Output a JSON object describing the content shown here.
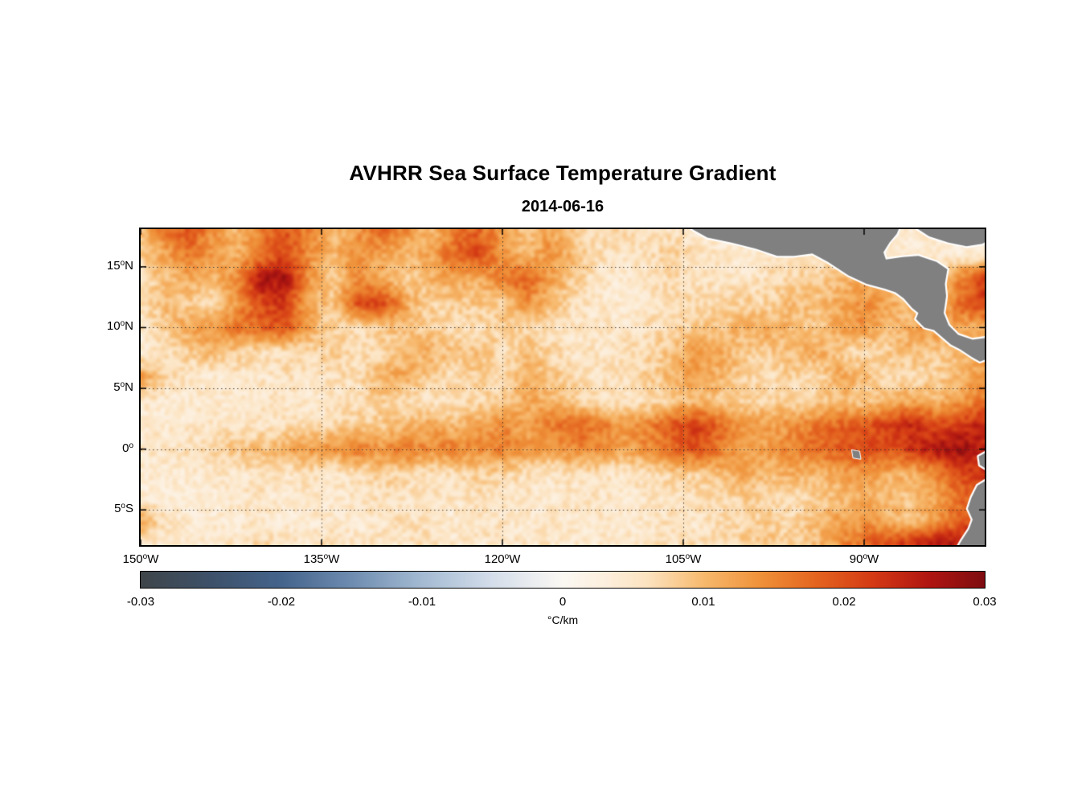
{
  "chart_data": {
    "type": "heatmap",
    "title": "AVHRR Sea Surface Temperature Gradient",
    "subtitle": "2014-06-16",
    "background_noise_amplitude": 0.0025,
    "axes": {
      "lon_west_range": [
        150,
        80
      ],
      "lat_range": [
        18.1,
        -7.9
      ],
      "grid_style": "dotted",
      "x_ticks": [
        {
          "lon": 150,
          "base": "150",
          "sup": "o",
          "suffix": "W"
        },
        {
          "lon": 135,
          "base": "135",
          "sup": "o",
          "suffix": "W"
        },
        {
          "lon": 120,
          "base": "120",
          "sup": "o",
          "suffix": "W"
        },
        {
          "lon": 105,
          "base": "105",
          "sup": "o",
          "suffix": "W"
        },
        {
          "lon": 90,
          "base": "90",
          "sup": "o",
          "suffix": "W"
        }
      ],
      "y_ticks": [
        {
          "lat": 15,
          "base": "15",
          "sup": "o",
          "suffix": "N"
        },
        {
          "lat": 10,
          "base": "10",
          "sup": "o",
          "suffix": "N"
        },
        {
          "lat": 5,
          "base": "5",
          "sup": "o",
          "suffix": "N"
        },
        {
          "lat": 0,
          "base": "0",
          "sup": "o",
          "suffix": ""
        },
        {
          "lat": -5,
          "base": "5",
          "sup": "o",
          "suffix": "S"
        }
      ]
    },
    "colorbar": {
      "label": "°C/km",
      "min": -0.03,
      "max": 0.03,
      "ticks": [
        {
          "value": -0.03,
          "label": "-0.03"
        },
        {
          "value": -0.02,
          "label": "-0.02"
        },
        {
          "value": -0.01,
          "label": "-0.01"
        },
        {
          "value": 0,
          "label": "0"
        },
        {
          "value": 0.01,
          "label": "0.01"
        },
        {
          "value": 0.02,
          "label": "0.02"
        },
        {
          "value": 0.03,
          "label": "0.03"
        }
      ],
      "stops": [
        [
          -0.03,
          "#3f4549"
        ],
        [
          -0.025,
          "#3d5169"
        ],
        [
          -0.02,
          "#45648c"
        ],
        [
          -0.015,
          "#6e8cb0"
        ],
        [
          -0.01,
          "#a3bad2"
        ],
        [
          -0.005,
          "#d4ddea"
        ],
        [
          0,
          "#fbf8f3"
        ],
        [
          0.003,
          "#fcefdd"
        ],
        [
          0.006,
          "#fce3c0"
        ],
        [
          0.01,
          "#f7b96d"
        ],
        [
          0.014,
          "#ef923a"
        ],
        [
          0.018,
          "#e4641f"
        ],
        [
          0.022,
          "#d43a14"
        ],
        [
          0.026,
          "#b01511"
        ],
        [
          0.03,
          "#7e0c10"
        ]
      ]
    },
    "grid": {
      "units": "degC_per_km",
      "lons_west": [
        150,
        148,
        146,
        144,
        142,
        140,
        138,
        136,
        134,
        132,
        130,
        128,
        126,
        124,
        122,
        120,
        118,
        116,
        114,
        112,
        110,
        108,
        106,
        104,
        102,
        100,
        98,
        96,
        94,
        92,
        90,
        88,
        86,
        84,
        82,
        80
      ],
      "lats": [
        18,
        16,
        14,
        12,
        10,
        8,
        6,
        4,
        2,
        0,
        -2,
        -4,
        -6,
        -8
      ],
      "values": [
        [
          0.01,
          0.016,
          0.02,
          0.014,
          0.01,
          0.016,
          0.02,
          0.015,
          0.01,
          0.013,
          0.018,
          0.014,
          0.01,
          0.015,
          0.018,
          0.013,
          0.009,
          0.012,
          0.008,
          0.006,
          0.008,
          0.006,
          0.005,
          0.004,
          0.004,
          0.004,
          0.004,
          0.004,
          0.004,
          0.004,
          0.004,
          0.004,
          0.004,
          0.004,
          0.004,
          0.004
        ],
        [
          0.008,
          0.012,
          0.016,
          0.013,
          0.011,
          0.016,
          0.021,
          0.014,
          0.01,
          0.014,
          0.012,
          0.01,
          0.012,
          0.018,
          0.021,
          0.013,
          0.01,
          0.014,
          0.01,
          0.006,
          0.005,
          0.006,
          0.008,
          0.006,
          0.005,
          0.004,
          0.005,
          0.006,
          0.005,
          0.004,
          0.004,
          0.004,
          0.004,
          0.004,
          0.004,
          0.004
        ],
        [
          0.006,
          0.009,
          0.012,
          0.01,
          0.015,
          0.026,
          0.027,
          0.013,
          0.008,
          0.014,
          0.011,
          0.008,
          0.01,
          0.012,
          0.011,
          0.016,
          0.019,
          0.012,
          0.008,
          0.005,
          0.004,
          0.005,
          0.007,
          0.005,
          0.006,
          0.005,
          0.006,
          0.007,
          0.008,
          0.01,
          0.012,
          0.01,
          0.008,
          0.007,
          0.016,
          0.021
        ],
        [
          0.006,
          0.01,
          0.008,
          0.006,
          0.013,
          0.021,
          0.022,
          0.011,
          0.009,
          0.02,
          0.022,
          0.012,
          0.007,
          0.008,
          0.009,
          0.008,
          0.014,
          0.01,
          0.006,
          0.005,
          0.004,
          0.005,
          0.006,
          0.007,
          0.006,
          0.008,
          0.007,
          0.01,
          0.009,
          0.012,
          0.014,
          0.012,
          0.009,
          0.008,
          0.018,
          0.022
        ],
        [
          0.005,
          0.008,
          0.012,
          0.014,
          0.016,
          0.018,
          0.02,
          0.012,
          0.007,
          0.006,
          0.008,
          0.01,
          0.008,
          0.006,
          0.006,
          0.008,
          0.007,
          0.006,
          0.005,
          0.005,
          0.005,
          0.006,
          0.007,
          0.008,
          0.009,
          0.011,
          0.012,
          0.01,
          0.008,
          0.012,
          0.014,
          0.01,
          0.012,
          0.014,
          0.012,
          0.01
        ],
        [
          0.004,
          0.006,
          0.008,
          0.011,
          0.008,
          0.006,
          0.006,
          0.007,
          0.008,
          0.006,
          0.007,
          0.009,
          0.011,
          0.009,
          0.01,
          0.006,
          0.009,
          0.007,
          0.005,
          0.005,
          0.006,
          0.007,
          0.009,
          0.013,
          0.012,
          0.008,
          0.008,
          0.01,
          0.012,
          0.008,
          0.006,
          0.008,
          0.01,
          0.008,
          0.01,
          0.012
        ],
        [
          0.013,
          0.008,
          0.005,
          0.004,
          0.005,
          0.005,
          0.006,
          0.005,
          0.006,
          0.006,
          0.011,
          0.012,
          0.008,
          0.006,
          0.008,
          0.006,
          0.011,
          0.009,
          0.006,
          0.005,
          0.006,
          0.008,
          0.01,
          0.013,
          0.011,
          0.008,
          0.006,
          0.008,
          0.006,
          0.012,
          0.01,
          0.006,
          0.006,
          0.008,
          0.01,
          0.014
        ],
        [
          0.005,
          0.004,
          0.004,
          0.005,
          0.004,
          0.005,
          0.005,
          0.004,
          0.005,
          0.006,
          0.008,
          0.006,
          0.005,
          0.006,
          0.007,
          0.008,
          0.012,
          0.01,
          0.008,
          0.006,
          0.005,
          0.006,
          0.008,
          0.01,
          0.008,
          0.007,
          0.008,
          0.007,
          0.008,
          0.01,
          0.008,
          0.01,
          0.012,
          0.01,
          0.013,
          0.016
        ],
        [
          0.004,
          0.004,
          0.005,
          0.005,
          0.005,
          0.005,
          0.006,
          0.006,
          0.007,
          0.008,
          0.008,
          0.01,
          0.012,
          0.01,
          0.012,
          0.014,
          0.012,
          0.016,
          0.018,
          0.016,
          0.013,
          0.015,
          0.019,
          0.022,
          0.018,
          0.013,
          0.012,
          0.014,
          0.016,
          0.018,
          0.019,
          0.022,
          0.024,
          0.02,
          0.022,
          0.025
        ],
        [
          0.005,
          0.005,
          0.006,
          0.007,
          0.009,
          0.01,
          0.011,
          0.013,
          0.014,
          0.016,
          0.014,
          0.016,
          0.014,
          0.016,
          0.014,
          0.016,
          0.013,
          0.012,
          0.015,
          0.014,
          0.012,
          0.014,
          0.017,
          0.02,
          0.016,
          0.012,
          0.013,
          0.015,
          0.017,
          0.019,
          0.021,
          0.019,
          0.023,
          0.026,
          0.028,
          0.024
        ],
        [
          0.004,
          0.004,
          0.004,
          0.005,
          0.005,
          0.006,
          0.005,
          0.006,
          0.005,
          0.006,
          0.008,
          0.007,
          0.006,
          0.006,
          0.008,
          0.007,
          0.006,
          0.005,
          0.006,
          0.006,
          0.005,
          0.006,
          0.008,
          0.008,
          0.01,
          0.012,
          0.01,
          0.011,
          0.01,
          0.012,
          0.013,
          0.011,
          0.01,
          0.015,
          0.02,
          0.023
        ],
        [
          0.004,
          0.004,
          0.004,
          0.004,
          0.005,
          0.005,
          0.004,
          0.005,
          0.004,
          0.005,
          0.006,
          0.005,
          0.005,
          0.005,
          0.006,
          0.005,
          0.005,
          0.004,
          0.005,
          0.005,
          0.004,
          0.005,
          0.005,
          0.006,
          0.006,
          0.008,
          0.007,
          0.006,
          0.008,
          0.009,
          0.011,
          0.01,
          0.009,
          0.012,
          0.017,
          0.021
        ],
        [
          0.012,
          0.006,
          0.004,
          0.004,
          0.004,
          0.005,
          0.004,
          0.004,
          0.005,
          0.004,
          0.005,
          0.006,
          0.005,
          0.004,
          0.005,
          0.005,
          0.004,
          0.005,
          0.004,
          0.005,
          0.004,
          0.005,
          0.006,
          0.005,
          0.006,
          0.007,
          0.008,
          0.007,
          0.009,
          0.012,
          0.014,
          0.011,
          0.009,
          0.013,
          0.019,
          0.023
        ],
        [
          0.005,
          0.004,
          0.004,
          0.005,
          0.006,
          0.007,
          0.006,
          0.005,
          0.006,
          0.005,
          0.006,
          0.005,
          0.006,
          0.005,
          0.005,
          0.006,
          0.005,
          0.005,
          0.005,
          0.004,
          0.005,
          0.005,
          0.006,
          0.006,
          0.007,
          0.008,
          0.009,
          0.008,
          0.01,
          0.014,
          0.018,
          0.022,
          0.025,
          0.028,
          0.026,
          0.022
        ]
      ]
    },
    "land": {
      "color": "#808080",
      "coast_color": "#ffffff",
      "polygons": [
        {
          "name": "central-america",
          "points": [
            [
              104.8,
              18.4
            ],
            [
              103.0,
              17.4
            ],
            [
              101.0,
              17.0
            ],
            [
              99.0,
              16.5
            ],
            [
              97.2,
              15.9
            ],
            [
              95.8,
              15.9
            ],
            [
              94.3,
              16.1
            ],
            [
              93.0,
              15.4
            ],
            [
              91.3,
              14.3
            ],
            [
              89.8,
              13.6
            ],
            [
              88.3,
              13.2
            ],
            [
              87.4,
              12.9
            ],
            [
              86.7,
              12.4
            ],
            [
              86.0,
              11.6
            ],
            [
              85.5,
              11.2
            ],
            [
              85.7,
              10.7
            ],
            [
              85.0,
              10.0
            ],
            [
              84.2,
              9.8
            ],
            [
              83.5,
              9.2
            ],
            [
              82.8,
              8.6
            ],
            [
              82.0,
              8.2
            ],
            [
              81.1,
              7.6
            ],
            [
              80.4,
              7.2
            ],
            [
              79.6,
              7.5
            ],
            [
              79.6,
              9.2
            ],
            [
              81.0,
              9.0
            ],
            [
              82.2,
              9.4
            ],
            [
              83.0,
              10.2
            ],
            [
              83.4,
              11.2
            ],
            [
              83.2,
              12.6
            ],
            [
              83.3,
              13.6
            ],
            [
              83.1,
              14.8
            ],
            [
              84.0,
              15.4
            ],
            [
              85.5,
              15.9
            ],
            [
              86.8,
              15.8
            ],
            [
              88.2,
              15.6
            ],
            [
              88.4,
              16.2
            ],
            [
              87.9,
              17.0
            ],
            [
              87.3,
              17.7
            ],
            [
              87.0,
              18.4
            ]
          ]
        },
        {
          "name": "top-right-landmass",
          "points": [
            [
              86.0,
              18.4
            ],
            [
              84.6,
              17.5
            ],
            [
              83.0,
              17.0
            ],
            [
              81.5,
              16.7
            ],
            [
              80.2,
              16.9
            ],
            [
              79.5,
              17.3
            ],
            [
              79.5,
              18.4
            ]
          ]
        },
        {
          "name": "ecuador-notch",
          "points": [
            [
              79.6,
              -0.1
            ],
            [
              80.5,
              -0.6
            ],
            [
              80.4,
              -1.3
            ],
            [
              79.6,
              -1.8
            ]
          ]
        },
        {
          "name": "peru-coast",
          "points": [
            [
              79.6,
              -2.4
            ],
            [
              80.6,
              -3.0
            ],
            [
              81.1,
              -4.0
            ],
            [
              81.4,
              -4.9
            ],
            [
              81.0,
              -5.8
            ],
            [
              81.3,
              -6.6
            ],
            [
              81.9,
              -7.5
            ],
            [
              82.3,
              -8.2
            ],
            [
              79.6,
              -8.2
            ]
          ]
        },
        {
          "name": "galapagos",
          "points": [
            [
              91.0,
              -0.1
            ],
            [
              90.4,
              -0.2
            ],
            [
              90.3,
              -0.8
            ],
            [
              90.9,
              -0.7
            ]
          ]
        }
      ]
    }
  }
}
